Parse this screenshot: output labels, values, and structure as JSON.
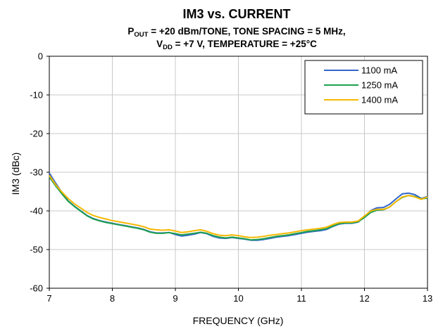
{
  "chart_data": {
    "type": "line",
    "title": "IM3 vs. CURRENT",
    "subtitle_line1": {
      "p": "P",
      "p_sub": "OUT",
      "rest": " = +20 dBm/TONE, TONE SPACING = 5 MHz,"
    },
    "subtitle_line2": {
      "v": "V",
      "v_sub": "DD",
      "rest": " = +7 V, TEMPERATURE = +25°C"
    },
    "xlabel": "FREQUENCY (GHz)",
    "ylabel": "IM3 (dBc)",
    "xlim": [
      7,
      13
    ],
    "ylim": [
      -60,
      0
    ],
    "x_ticks": [
      7,
      8,
      9,
      10,
      11,
      12,
      13
    ],
    "x_tick_labels": [
      "7",
      "8",
      "9",
      "10",
      "11",
      "12",
      "13"
    ],
    "y_ticks": [
      0,
      -10,
      -20,
      -30,
      -40,
      -50,
      -60
    ],
    "y_tick_labels": [
      "0",
      "-10",
      "-20",
      "-30",
      "-40",
      "-50",
      "-60"
    ],
    "grid": true,
    "legend_position": "top-right",
    "series": [
      {
        "name": "1100 mA",
        "color": "#3366cc",
        "x": [
          7.0,
          7.1,
          7.2,
          7.3,
          7.4,
          7.5,
          7.6,
          7.7,
          7.8,
          7.9,
          8.0,
          8.1,
          8.2,
          8.3,
          8.4,
          8.5,
          8.6,
          8.7,
          8.8,
          8.9,
          9.0,
          9.1,
          9.2,
          9.3,
          9.4,
          9.5,
          9.6,
          9.7,
          9.8,
          9.9,
          10.0,
          10.1,
          10.2,
          10.3,
          10.4,
          10.5,
          10.6,
          10.7,
          10.8,
          10.9,
          11.0,
          11.1,
          11.2,
          11.3,
          11.4,
          11.5,
          11.6,
          11.7,
          11.8,
          11.9,
          12.0,
          12.1,
          12.2,
          12.3,
          12.4,
          12.5,
          12.6,
          12.7,
          12.8,
          12.9,
          13.0
        ],
        "values": [
          -30.2,
          -32.8,
          -35.2,
          -37.4,
          -38.8,
          -40.0,
          -41.2,
          -42.0,
          -42.5,
          -42.9,
          -43.2,
          -43.5,
          -43.8,
          -44.1,
          -44.4,
          -44.8,
          -45.4,
          -45.7,
          -45.7,
          -45.6,
          -46.1,
          -46.5,
          -46.3,
          -46.0,
          -45.6,
          -45.9,
          -46.6,
          -47.0,
          -47.1,
          -46.9,
          -47.1,
          -47.3,
          -47.6,
          -47.6,
          -47.4,
          -47.1,
          -46.8,
          -46.6,
          -46.4,
          -46.1,
          -45.8,
          -45.5,
          -45.3,
          -45.1,
          -44.8,
          -44.0,
          -43.4,
          -43.2,
          -43.2,
          -42.9,
          -41.5,
          -39.9,
          -39.2,
          -39.1,
          -38.3,
          -36.9,
          -35.6,
          -35.4,
          -35.8,
          -36.8,
          -36.3
        ]
      },
      {
        "name": "1250 mA",
        "color": "#1fa04f",
        "x": [
          7.0,
          7.1,
          7.2,
          7.3,
          7.4,
          7.5,
          7.6,
          7.7,
          7.8,
          7.9,
          8.0,
          8.1,
          8.2,
          8.3,
          8.4,
          8.5,
          8.6,
          8.7,
          8.8,
          8.9,
          9.0,
          9.1,
          9.2,
          9.3,
          9.4,
          9.5,
          9.6,
          9.7,
          9.8,
          9.9,
          10.0,
          10.1,
          10.2,
          10.3,
          10.4,
          10.5,
          10.6,
          10.7,
          10.8,
          10.9,
          11.0,
          11.1,
          11.2,
          11.3,
          11.4,
          11.5,
          11.6,
          11.7,
          11.8,
          11.9,
          12.0,
          12.1,
          12.2,
          12.3,
          12.4,
          12.5,
          12.6,
          12.7,
          12.8,
          12.9,
          13.0
        ],
        "values": [
          -31.2,
          -33.5,
          -35.6,
          -37.5,
          -38.9,
          -40.1,
          -41.3,
          -42.1,
          -42.6,
          -43.0,
          -43.3,
          -43.6,
          -43.9,
          -44.2,
          -44.5,
          -44.9,
          -45.5,
          -45.8,
          -45.8,
          -45.6,
          -45.9,
          -46.2,
          -46.0,
          -45.8,
          -45.5,
          -45.8,
          -46.4,
          -46.8,
          -47.0,
          -46.8,
          -47.0,
          -47.2,
          -47.5,
          -47.4,
          -47.2,
          -46.9,
          -46.6,
          -46.4,
          -46.2,
          -45.9,
          -45.6,
          -45.3,
          -45.1,
          -44.9,
          -44.6,
          -43.9,
          -43.3,
          -43.1,
          -43.1,
          -42.8,
          -41.7,
          -40.4,
          -39.8,
          -39.7,
          -39.0,
          -37.6,
          -36.5,
          -36.0,
          -36.3,
          -36.9,
          -36.7
        ]
      },
      {
        "name": "1400 mA",
        "color": "#f5b800",
        "x": [
          7.0,
          7.1,
          7.2,
          7.3,
          7.4,
          7.5,
          7.6,
          7.7,
          7.8,
          7.9,
          8.0,
          8.1,
          8.2,
          8.3,
          8.4,
          8.5,
          8.6,
          8.7,
          8.8,
          8.9,
          9.0,
          9.1,
          9.2,
          9.3,
          9.4,
          9.5,
          9.6,
          9.7,
          9.8,
          9.9,
          10.0,
          10.1,
          10.2,
          10.3,
          10.4,
          10.5,
          10.6,
          10.7,
          10.8,
          10.9,
          11.0,
          11.1,
          11.2,
          11.3,
          11.4,
          11.5,
          11.6,
          11.7,
          11.8,
          11.9,
          12.0,
          12.1,
          12.2,
          12.3,
          12.4,
          12.5,
          12.6,
          12.7,
          12.8,
          12.9,
          13.0
        ],
        "values": [
          -30.8,
          -33.2,
          -35.1,
          -36.8,
          -38.2,
          -39.3,
          -40.4,
          -41.2,
          -41.7,
          -42.1,
          -42.5,
          -42.8,
          -43.1,
          -43.4,
          -43.7,
          -44.1,
          -44.7,
          -44.9,
          -45.0,
          -44.9,
          -45.2,
          -45.6,
          -45.4,
          -45.1,
          -44.9,
          -45.3,
          -45.9,
          -46.3,
          -46.4,
          -46.2,
          -46.4,
          -46.7,
          -46.9,
          -46.8,
          -46.6,
          -46.3,
          -46.1,
          -45.9,
          -45.7,
          -45.4,
          -45.1,
          -44.9,
          -44.7,
          -44.5,
          -44.2,
          -43.5,
          -43.0,
          -42.9,
          -42.9,
          -42.6,
          -41.3,
          -40.0,
          -39.6,
          -39.6,
          -39.0,
          -37.6,
          -36.4,
          -36.0,
          -36.4,
          -37.0,
          -36.4
        ]
      }
    ]
  }
}
